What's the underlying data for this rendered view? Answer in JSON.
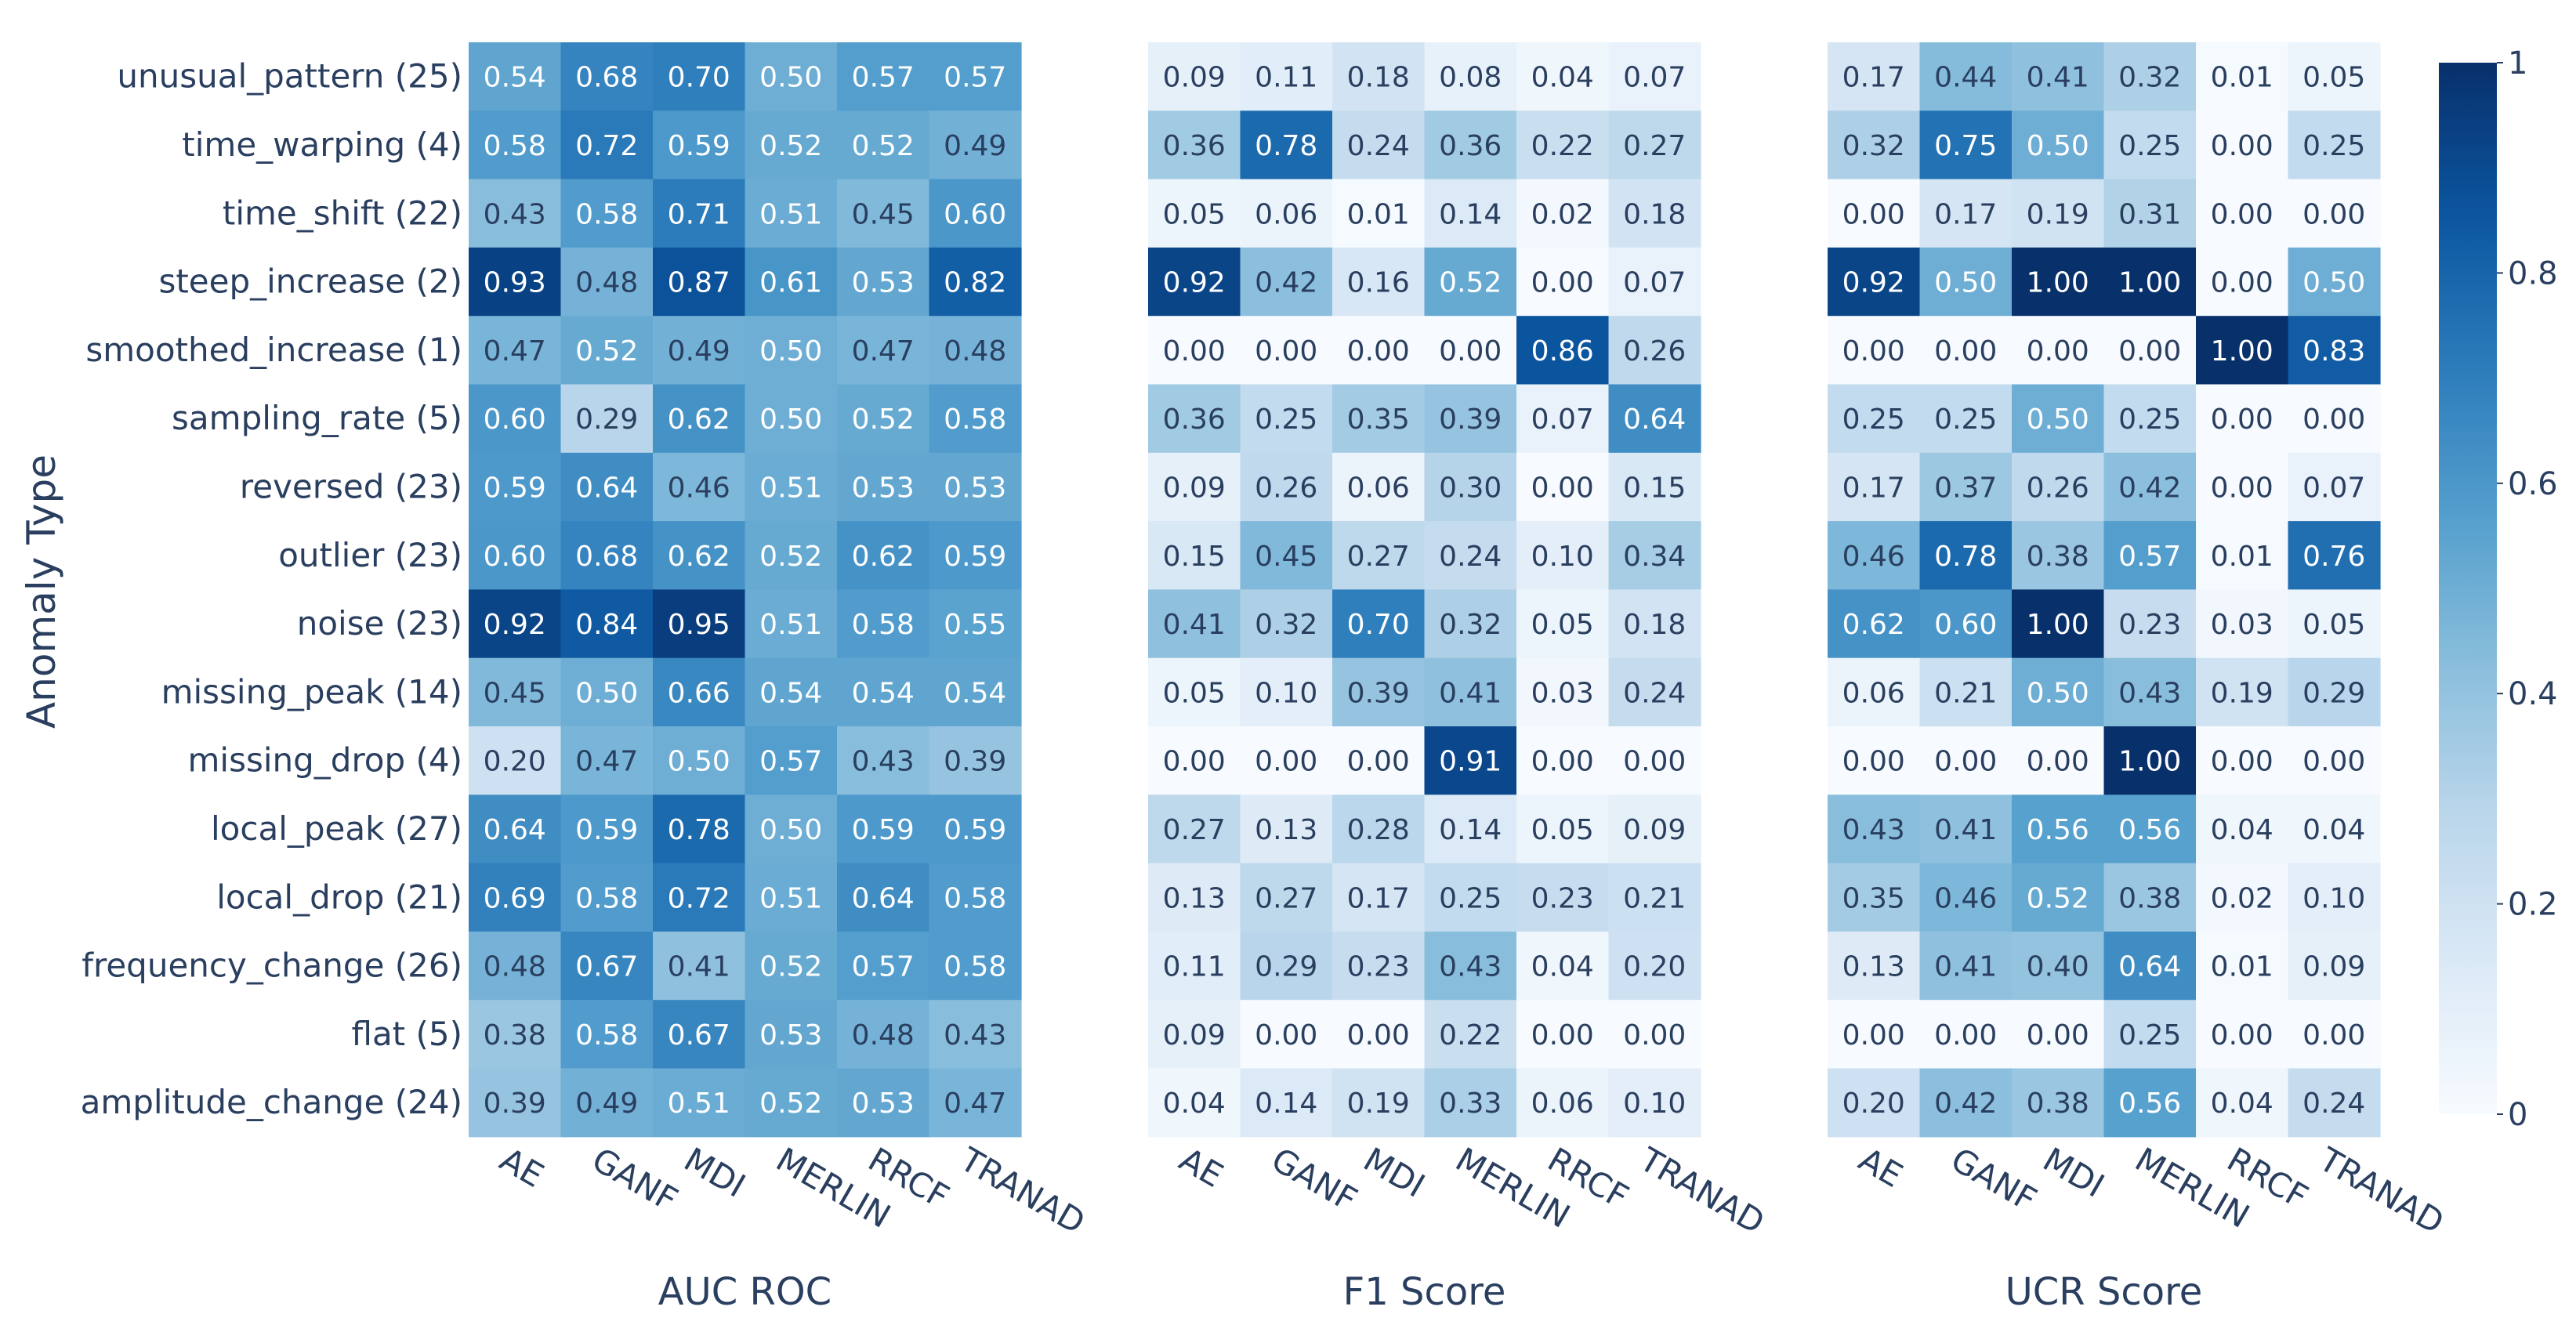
{
  "chart_data": {
    "type": "heatmap",
    "ylabel": "Anomaly Type",
    "zlim": [
      0,
      1
    ],
    "colorscale": [
      "#f7fbff",
      "#dbe9f6",
      "#bad6eb",
      "#89bedc",
      "#539ecd",
      "#2b7bba",
      "#0b559f",
      "#08306b"
    ],
    "colorbar_ticks": [
      {
        "value": 0,
        "label": "0"
      },
      {
        "value": 0.2,
        "label": "0.2"
      },
      {
        "value": 0.4,
        "label": "0.4"
      },
      {
        "value": 0.6,
        "label": "0.6"
      },
      {
        "value": 0.8,
        "label": "0.8"
      },
      {
        "value": 1,
        "label": "1"
      }
    ],
    "rows": [
      "unusual_pattern (25)",
      "time_warping (4)",
      "time_shift (22)",
      "steep_increase (2)",
      "smoothed_increase (1)",
      "sampling_rate (5)",
      "reversed (23)",
      "outlier (23)",
      "noise (23)",
      "missing_peak (14)",
      "missing_drop (4)",
      "local_peak (27)",
      "local_drop (21)",
      "frequency_change (26)",
      "flat (5)",
      "amplitude_change (24)"
    ],
    "columns": [
      "AE",
      "GANF",
      "MDI",
      "MERLIN",
      "RRCF",
      "TRANAD"
    ],
    "panels": [
      {
        "title": "AUC ROC",
        "values": [
          [
            0.54,
            0.68,
            0.7,
            0.5,
            0.57,
            0.57
          ],
          [
            0.58,
            0.72,
            0.59,
            0.52,
            0.52,
            0.49
          ],
          [
            0.43,
            0.58,
            0.71,
            0.51,
            0.45,
            0.6
          ],
          [
            0.93,
            0.48,
            0.87,
            0.61,
            0.53,
            0.82
          ],
          [
            0.47,
            0.52,
            0.49,
            0.5,
            0.47,
            0.48
          ],
          [
            0.6,
            0.29,
            0.62,
            0.5,
            0.52,
            0.58
          ],
          [
            0.59,
            0.64,
            0.46,
            0.51,
            0.53,
            0.53
          ],
          [
            0.6,
            0.68,
            0.62,
            0.52,
            0.62,
            0.59
          ],
          [
            0.92,
            0.84,
            0.95,
            0.51,
            0.58,
            0.55
          ],
          [
            0.45,
            0.5,
            0.66,
            0.54,
            0.54,
            0.54
          ],
          [
            0.2,
            0.47,
            0.5,
            0.57,
            0.43,
            0.39
          ],
          [
            0.64,
            0.59,
            0.78,
            0.5,
            0.59,
            0.59
          ],
          [
            0.69,
            0.58,
            0.72,
            0.51,
            0.64,
            0.58
          ],
          [
            0.48,
            0.67,
            0.41,
            0.52,
            0.57,
            0.58
          ],
          [
            0.38,
            0.58,
            0.67,
            0.53,
            0.48,
            0.43
          ],
          [
            0.39,
            0.49,
            0.51,
            0.52,
            0.53,
            0.47
          ]
        ]
      },
      {
        "title": "F1 Score",
        "values": [
          [
            0.09,
            0.11,
            0.18,
            0.08,
            0.04,
            0.07
          ],
          [
            0.36,
            0.78,
            0.24,
            0.36,
            0.22,
            0.27
          ],
          [
            0.05,
            0.06,
            0.01,
            0.14,
            0.02,
            0.18
          ],
          [
            0.92,
            0.42,
            0.16,
            0.52,
            0.0,
            0.07
          ],
          [
            0.0,
            0.0,
            0.0,
            0.0,
            0.86,
            0.26
          ],
          [
            0.36,
            0.25,
            0.35,
            0.39,
            0.07,
            0.64
          ],
          [
            0.09,
            0.26,
            0.06,
            0.3,
            0.0,
            0.15
          ],
          [
            0.15,
            0.45,
            0.27,
            0.24,
            0.1,
            0.34
          ],
          [
            0.41,
            0.32,
            0.7,
            0.32,
            0.05,
            0.18
          ],
          [
            0.05,
            0.1,
            0.39,
            0.41,
            0.03,
            0.24
          ],
          [
            0.0,
            0.0,
            0.0,
            0.91,
            0.0,
            0.0
          ],
          [
            0.27,
            0.13,
            0.28,
            0.14,
            0.05,
            0.09
          ],
          [
            0.13,
            0.27,
            0.17,
            0.25,
            0.23,
            0.21
          ],
          [
            0.11,
            0.29,
            0.23,
            0.43,
            0.04,
            0.2
          ],
          [
            0.09,
            0.0,
            0.0,
            0.22,
            0.0,
            0.0
          ],
          [
            0.04,
            0.14,
            0.19,
            0.33,
            0.06,
            0.1
          ]
        ]
      },
      {
        "title": "UCR Score",
        "values": [
          [
            0.17,
            0.44,
            0.41,
            0.32,
            0.01,
            0.05
          ],
          [
            0.32,
            0.75,
            0.5,
            0.25,
            0.0,
            0.25
          ],
          [
            0.0,
            0.17,
            0.19,
            0.31,
            0.0,
            0.0
          ],
          [
            0.92,
            0.5,
            1.0,
            1.0,
            0.0,
            0.5
          ],
          [
            0.0,
            0.0,
            0.0,
            0.0,
            1.0,
            0.83
          ],
          [
            0.25,
            0.25,
            0.5,
            0.25,
            0.0,
            0.0
          ],
          [
            0.17,
            0.37,
            0.26,
            0.42,
            0.0,
            0.07
          ],
          [
            0.46,
            0.78,
            0.38,
            0.57,
            0.01,
            0.76
          ],
          [
            0.62,
            0.6,
            1.0,
            0.23,
            0.03,
            0.05
          ],
          [
            0.06,
            0.21,
            0.5,
            0.43,
            0.19,
            0.29
          ],
          [
            0.0,
            0.0,
            0.0,
            1.0,
            0.0,
            0.0
          ],
          [
            0.43,
            0.41,
            0.56,
            0.56,
            0.04,
            0.04
          ],
          [
            0.35,
            0.46,
            0.52,
            0.38,
            0.02,
            0.1
          ],
          [
            0.13,
            0.41,
            0.4,
            0.64,
            0.01,
            0.09
          ],
          [
            0.0,
            0.0,
            0.0,
            0.25,
            0.0,
            0.0
          ],
          [
            0.2,
            0.42,
            0.38,
            0.56,
            0.04,
            0.24
          ]
        ]
      }
    ]
  }
}
